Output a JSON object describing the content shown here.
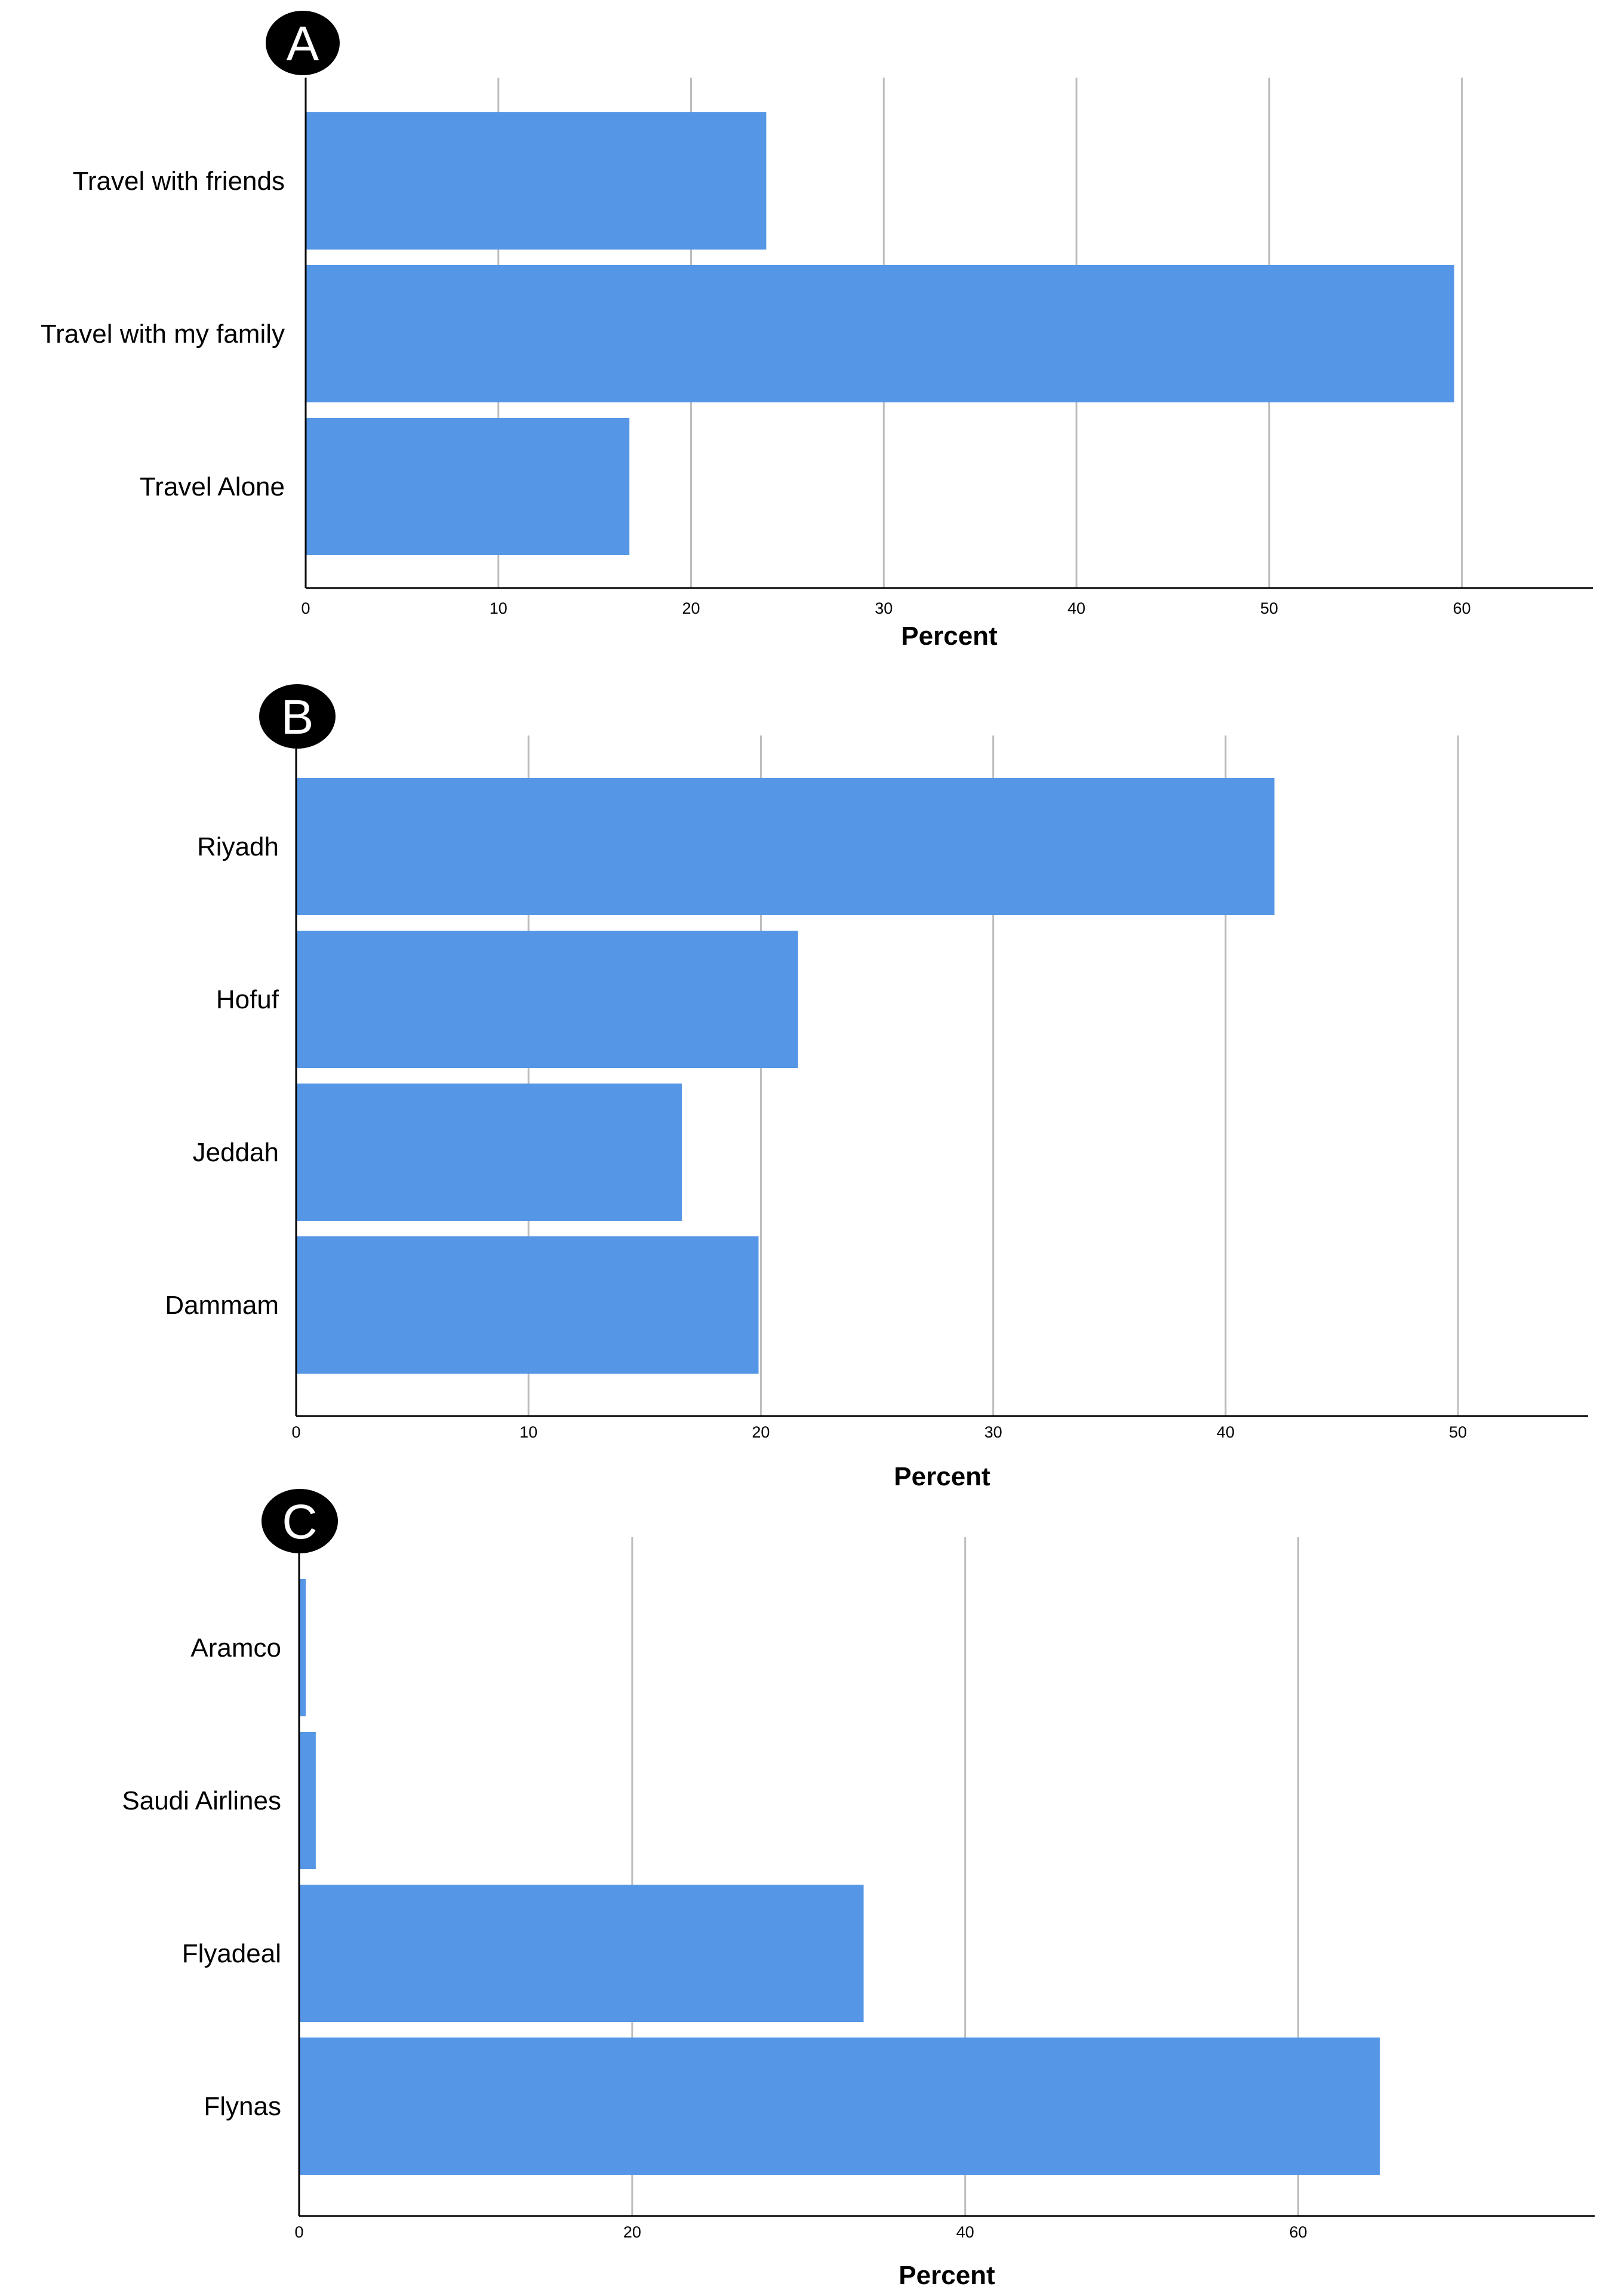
{
  "colors": {
    "bar": "#5596E6",
    "grid": "#BDBDBD",
    "axis": "#000000",
    "badge": "#000000"
  },
  "chart_data": [
    {
      "type": "bar",
      "orientation": "horizontal",
      "panel_label": "A",
      "categories": [
        "Travel with friends",
        "Travel with my family",
        "Travel Alone"
      ],
      "values": [
        23.9,
        59.6,
        16.8
      ],
      "xlabel": "Percent",
      "xticks": [
        "0",
        "10",
        "20",
        "30",
        "40",
        "50",
        "60"
      ],
      "xlim": [
        0,
        66.8
      ],
      "grid": true
    },
    {
      "type": "bar",
      "orientation": "horizontal",
      "panel_label": "B",
      "categories": [
        "Riyadh",
        "Hofuf",
        "Jeddah",
        "Dammam"
      ],
      "values": [
        42.1,
        21.6,
        16.6,
        19.9
      ],
      "xlabel": "Percent",
      "xticks": [
        "0",
        "10",
        "20",
        "30",
        "40",
        "50"
      ],
      "xlim": [
        0,
        55.6
      ],
      "grid": true
    },
    {
      "type": "bar",
      "orientation": "horizontal",
      "panel_label": "C",
      "categories": [
        "Aramco",
        "Saudi Airlines",
        "Flyadeal",
        "Flynas"
      ],
      "values": [
        0.4,
        1.0,
        33.9,
        64.9
      ],
      "xlabel": "Percent",
      "xticks": [
        "0",
        "20",
        "40",
        "60"
      ],
      "xlim": [
        0,
        77.8
      ],
      "grid": true
    }
  ]
}
